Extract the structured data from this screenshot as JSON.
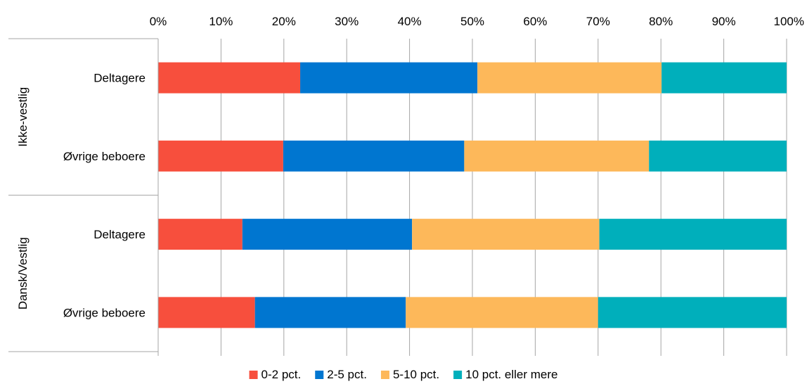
{
  "chart_data": {
    "type": "bar",
    "orientation": "horizontal",
    "stacked": true,
    "percent_stacked": true,
    "title": "",
    "xlabel": "",
    "ylabel": "",
    "xlim": [
      0,
      100
    ],
    "x_ticks": [
      "0%",
      "10%",
      "20%",
      "30%",
      "40%",
      "50%",
      "60%",
      "70%",
      "80%",
      "90%",
      "100%"
    ],
    "x_axis_position": "top",
    "grid": true,
    "legend_position": "bottom",
    "groups": [
      {
        "label": "Ikke-vestlig",
        "categories": [
          "Deltagere",
          "Øvrige beboere"
        ]
      },
      {
        "label": "Dansk/Vestlig",
        "categories": [
          "Deltagere",
          "Øvrige beboere"
        ]
      }
    ],
    "series": [
      {
        "name": "0-2 pct.",
        "color": "#F74F3D",
        "values": [
          22.6,
          19.9,
          13.4,
          15.4
        ]
      },
      {
        "name": "2-5 pct.",
        "color": "#0076D0",
        "values": [
          28.2,
          28.8,
          27.0,
          24.0
        ]
      },
      {
        "name": "5-10 pct.",
        "color": "#FDB85A",
        "values": [
          29.3,
          29.4,
          29.8,
          30.6
        ]
      },
      {
        "name": "10 pct. eller mere",
        "color": "#00AFBB",
        "values": [
          19.9,
          21.9,
          29.8,
          30.0
        ]
      }
    ]
  }
}
